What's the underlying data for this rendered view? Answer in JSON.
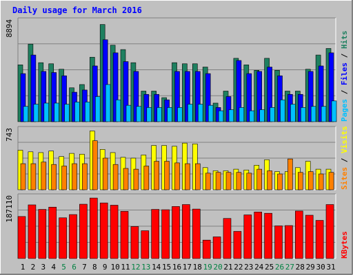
{
  "title": "Daily usage for March 2016",
  "colors": {
    "background": "#c0c0c0",
    "hits": "#1f8060",
    "files": "#0000ff",
    "pages": "#00c0ff",
    "visits": "#ffff00",
    "sites": "#ff8000",
    "kbytes": "#ff0000",
    "title": "#0000ff",
    "weekend": "#008040"
  },
  "chart_data": [
    {
      "type": "bar",
      "name": "hits-files-pages",
      "y_tick_label": "8894",
      "legend": [
        "Pages",
        "/",
        "Files",
        "/",
        "Hits"
      ],
      "ylim": [
        0,
        9500
      ],
      "categories": [
        "1",
        "2",
        "3",
        "4",
        "5",
        "6",
        "7",
        "8",
        "9",
        "10",
        "11",
        "12",
        "13",
        "14",
        "15",
        "16",
        "17",
        "18",
        "19",
        "20",
        "21",
        "22",
        "23",
        "24",
        "25",
        "26",
        "27",
        "28",
        "29",
        "30",
        "31"
      ],
      "weekend": [
        5,
        6,
        12,
        13,
        19,
        20,
        26,
        27
      ],
      "series": [
        {
          "name": "Hits",
          "values": [
            5200,
            7100,
            5400,
            5300,
            4800,
            3100,
            3400,
            5900,
            8894,
            7000,
            6600,
            5400,
            2800,
            2800,
            2200,
            5400,
            5300,
            5300,
            5000,
            1700,
            2800,
            5800,
            5200,
            4700,
            5800,
            4700,
            2800,
            2800,
            4800,
            6100,
            6700
          ]
        },
        {
          "name": "Files",
          "values": [
            4400,
            6100,
            4600,
            4500,
            4200,
            2700,
            2900,
            5100,
            7500,
            6300,
            5500,
            4600,
            2500,
            2500,
            2000,
            4600,
            4600,
            4600,
            4400,
            1300,
            2300,
            5600,
            4400,
            4600,
            5000,
            4200,
            2500,
            2500,
            4600,
            5100,
            6300
          ]
        },
        {
          "name": "Pages",
          "values": [
            1400,
            1600,
            1700,
            1700,
            1600,
            1800,
            1800,
            2300,
            3400,
            2000,
            1500,
            1400,
            1300,
            1300,
            1300,
            1300,
            1600,
            1600,
            1500,
            1000,
            1100,
            1300,
            1000,
            1100,
            1300,
            2000,
            1600,
            1300,
            1400,
            1400,
            1900
          ]
        }
      ]
    },
    {
      "type": "bar",
      "name": "visits-sites",
      "y_tick_label": "743",
      "legend": [
        "Sites",
        "/",
        "Visits"
      ],
      "ylim": [
        0,
        800
      ],
      "categories": [
        "1",
        "2",
        "3",
        "4",
        "5",
        "6",
        "7",
        "8",
        "9",
        "10",
        "11",
        "12",
        "13",
        "14",
        "15",
        "16",
        "17",
        "18",
        "19",
        "20",
        "21",
        "22",
        "23",
        "24",
        "25",
        "26",
        "27",
        "28",
        "29",
        "30",
        "31"
      ],
      "series": [
        {
          "name": "Visits",
          "values": [
            500,
            480,
            470,
            490,
            420,
            460,
            450,
            743,
            510,
            470,
            410,
            400,
            440,
            560,
            560,
            550,
            590,
            580,
            280,
            240,
            240,
            260,
            250,
            310,
            380,
            230,
            230,
            280,
            360,
            260,
            260
          ]
        },
        {
          "name": "Sites",
          "values": [
            330,
            330,
            350,
            320,
            300,
            330,
            330,
            620,
            400,
            320,
            270,
            260,
            300,
            360,
            360,
            340,
            330,
            330,
            210,
            220,
            220,
            220,
            210,
            260,
            240,
            200,
            390,
            220,
            230,
            200,
            220
          ]
        }
      ]
    },
    {
      "type": "bar",
      "name": "kbytes",
      "y_tick_label": "187110",
      "legend": [
        "KBytes"
      ],
      "ylim": [
        0,
        200000
      ],
      "categories": [
        "1",
        "2",
        "3",
        "4",
        "5",
        "6",
        "7",
        "8",
        "9",
        "10",
        "11",
        "12",
        "13",
        "14",
        "15",
        "16",
        "17",
        "18",
        "19",
        "20",
        "21",
        "22",
        "23",
        "24",
        "25",
        "26",
        "27",
        "28",
        "29",
        "30",
        "31"
      ],
      "series": [
        {
          "name": "KBytes",
          "values": [
            130000,
            166000,
            152000,
            159000,
            126000,
            136000,
            168000,
            187110,
            172000,
            165000,
            146000,
            99000,
            86000,
            152000,
            151000,
            161000,
            167000,
            153000,
            57000,
            67000,
            124000,
            84000,
            135000,
            144000,
            140000,
            101000,
            102000,
            147000,
            134000,
            118000,
            167000
          ]
        }
      ]
    }
  ]
}
